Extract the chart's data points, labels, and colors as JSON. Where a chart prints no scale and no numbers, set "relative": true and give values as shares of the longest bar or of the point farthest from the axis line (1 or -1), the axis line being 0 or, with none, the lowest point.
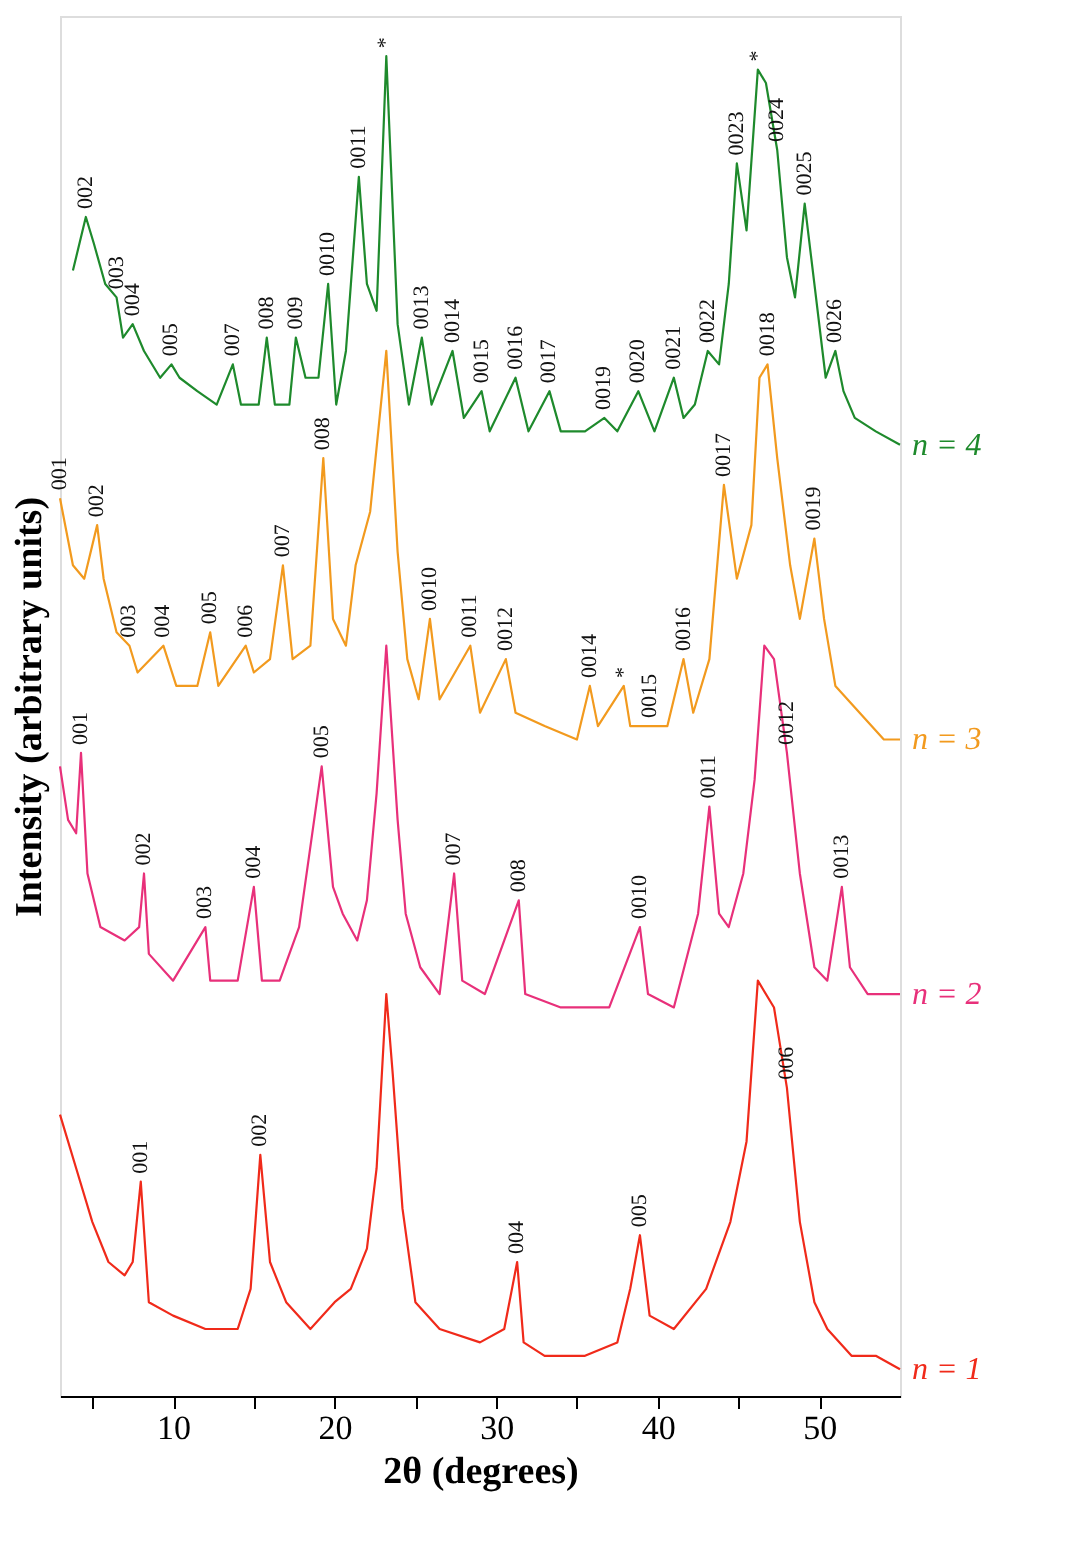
{
  "chart_data": {
    "type": "line",
    "relative": true,
    "xlabel": "2θ (degrees)",
    "ylabel": "Intensity (arbitrary units)",
    "xlim": [
      3,
      55
    ],
    "xticks": [
      {
        "value": 5,
        "label": null
      },
      10,
      {
        "value": 15,
        "label": null
      },
      20,
      {
        "value": 25,
        "label": null
      },
      30,
      {
        "value": 35,
        "label": null
      },
      40,
      {
        "value": 45,
        "label": null
      },
      50
    ],
    "grid": false,
    "marker": "none",
    "line_style": "solid",
    "series": [
      {
        "name": "n = 4",
        "color": "#1e8a2c",
        "x": [
          3.8,
          4.6,
          5.1,
          5.8,
          6.5,
          6.9,
          7.5,
          8.2,
          9.2,
          9.9,
          10.4,
          11.5,
          12.7,
          13.7,
          14.2,
          15.3,
          15.8,
          16.3,
          17.2,
          17.6,
          18.2,
          19.0,
          19.6,
          20.1,
          20.7,
          21.5,
          22.0,
          22.6,
          23.2,
          23.9,
          24.6,
          25.4,
          26.0,
          27.3,
          28.0,
          29.1,
          29.6,
          31.2,
          32.0,
          33.3,
          34.0,
          35.5,
          36.7,
          37.5,
          38.8,
          39.8,
          41.0,
          41.6,
          42.3,
          43.1,
          43.8,
          44.4,
          44.9,
          45.5,
          46.2,
          46.7,
          47.4,
          48.0,
          48.5,
          49.1,
          49.7,
          50.4,
          51.0,
          51.5,
          52.2,
          53.5,
          55.0
        ],
        "values": [
          0.84,
          0.88,
          0.86,
          0.83,
          0.82,
          0.79,
          0.8,
          0.78,
          0.76,
          0.77,
          0.76,
          0.75,
          0.74,
          0.77,
          0.74,
          0.74,
          0.79,
          0.74,
          0.74,
          0.79,
          0.76,
          0.76,
          0.83,
          0.74,
          0.78,
          0.91,
          0.83,
          0.81,
          1.0,
          0.8,
          0.74,
          0.79,
          0.74,
          0.78,
          0.73,
          0.75,
          0.72,
          0.76,
          0.72,
          0.75,
          0.72,
          0.72,
          0.73,
          0.72,
          0.75,
          0.72,
          0.76,
          0.73,
          0.74,
          0.78,
          0.77,
          0.83,
          0.92,
          0.87,
          0.99,
          0.98,
          0.93,
          0.85,
          0.82,
          0.89,
          0.83,
          0.76,
          0.78,
          0.75,
          0.73,
          0.72,
          0.71
        ]
      },
      {
        "name": "n = 3",
        "color": "#f29a1e",
        "x": [
          3.0,
          3.8,
          4.5,
          5.3,
          5.7,
          6.5,
          7.3,
          7.8,
          9.4,
          10.2,
          11.5,
          12.3,
          12.8,
          14.5,
          15.0,
          16.0,
          16.8,
          17.4,
          18.5,
          19.3,
          19.9,
          20.7,
          21.3,
          22.2,
          23.2,
          23.9,
          24.5,
          25.2,
          25.9,
          26.5,
          28.4,
          29.0,
          30.6,
          31.2,
          33.0,
          35.0,
          35.8,
          36.3,
          37.9,
          38.3,
          39.5,
          40.6,
          41.6,
          42.2,
          43.2,
          44.1,
          44.9,
          45.8,
          46.3,
          46.8,
          47.4,
          48.2,
          48.8,
          49.7,
          50.3,
          51.0,
          52.5,
          54.0,
          55.0
        ],
        "values": [
          0.67,
          0.62,
          0.61,
          0.65,
          0.61,
          0.57,
          0.56,
          0.54,
          0.56,
          0.53,
          0.53,
          0.57,
          0.53,
          0.56,
          0.54,
          0.55,
          0.62,
          0.55,
          0.56,
          0.7,
          0.58,
          0.56,
          0.62,
          0.66,
          0.78,
          0.63,
          0.55,
          0.52,
          0.58,
          0.52,
          0.56,
          0.51,
          0.55,
          0.51,
          0.5,
          0.49,
          0.53,
          0.5,
          0.53,
          0.5,
          0.5,
          0.5,
          0.55,
          0.51,
          0.55,
          0.68,
          0.61,
          0.65,
          0.76,
          0.77,
          0.7,
          0.62,
          0.58,
          0.64,
          0.58,
          0.53,
          0.51,
          0.49,
          0.49
        ]
      },
      {
        "name": "n = 2",
        "color": "#e8307a",
        "x": [
          3.0,
          3.5,
          4.0,
          4.3,
          4.7,
          5.5,
          7.0,
          7.9,
          8.2,
          8.5,
          10.0,
          12.0,
          12.3,
          14.0,
          15.0,
          15.5,
          16.6,
          17.8,
          19.2,
          19.9,
          20.5,
          21.4,
          22.0,
          22.6,
          23.2,
          23.9,
          24.4,
          25.3,
          26.5,
          27.4,
          27.9,
          29.3,
          31.4,
          31.8,
          34.0,
          37.0,
          38.9,
          39.4,
          41.0,
          42.5,
          43.2,
          43.8,
          44.4,
          45.3,
          46.0,
          46.6,
          47.2,
          48.0,
          48.8,
          49.7,
          50.5,
          51.4,
          51.9,
          53.0,
          55.0
        ],
        "values": [
          0.47,
          0.43,
          0.42,
          0.48,
          0.39,
          0.35,
          0.34,
          0.35,
          0.39,
          0.33,
          0.31,
          0.35,
          0.31,
          0.31,
          0.38,
          0.31,
          0.31,
          0.35,
          0.47,
          0.38,
          0.36,
          0.34,
          0.37,
          0.45,
          0.56,
          0.43,
          0.36,
          0.32,
          0.3,
          0.39,
          0.31,
          0.3,
          0.37,
          0.3,
          0.29,
          0.29,
          0.35,
          0.3,
          0.29,
          0.36,
          0.44,
          0.36,
          0.35,
          0.39,
          0.46,
          0.56,
          0.55,
          0.48,
          0.39,
          0.32,
          0.31,
          0.38,
          0.32,
          0.3,
          0.3
        ]
      },
      {
        "name": "n = 1",
        "color": "#f02a1a",
        "x": [
          3.0,
          4.0,
          5.0,
          6.0,
          7.0,
          7.5,
          8.0,
          8.5,
          10.0,
          12.0,
          14.0,
          14.8,
          15.4,
          16.0,
          17.0,
          18.5,
          20.0,
          21.0,
          22.0,
          22.6,
          23.2,
          23.6,
          24.2,
          25.0,
          26.5,
          29.0,
          30.5,
          31.3,
          31.7,
          33.0,
          35.5,
          37.5,
          38.3,
          38.9,
          39.5,
          41.0,
          43.0,
          44.5,
          45.5,
          46.2,
          47.2,
          48.0,
          48.8,
          49.7,
          50.5,
          52.0,
          53.5,
          55.0
        ],
        "values": [
          0.21,
          0.17,
          0.13,
          0.1,
          0.09,
          0.1,
          0.16,
          0.07,
          0.06,
          0.05,
          0.05,
          0.08,
          0.18,
          0.1,
          0.07,
          0.05,
          0.07,
          0.08,
          0.11,
          0.17,
          0.3,
          0.24,
          0.14,
          0.07,
          0.05,
          0.04,
          0.05,
          0.1,
          0.04,
          0.03,
          0.03,
          0.04,
          0.08,
          0.12,
          0.06,
          0.05,
          0.08,
          0.13,
          0.19,
          0.31,
          0.29,
          0.23,
          0.13,
          0.07,
          0.05,
          0.03,
          0.03,
          0.02
        ]
      }
    ],
    "annotations": [
      {
        "text": "002",
        "x": 4.6,
        "y": 0.88
      },
      {
        "text": "003",
        "x": 6.5,
        "y": 0.82
      },
      {
        "text": "004",
        "x": 7.5,
        "y": 0.8
      },
      {
        "text": "005",
        "x": 9.9,
        "y": 0.77
      },
      {
        "text": "007",
        "x": 13.7,
        "y": 0.77
      },
      {
        "text": "008",
        "x": 15.8,
        "y": 0.79
      },
      {
        "text": "009",
        "x": 17.6,
        "y": 0.79
      },
      {
        "text": "0010",
        "x": 19.6,
        "y": 0.83
      },
      {
        "text": "0011",
        "x": 21.5,
        "y": 0.91
      },
      {
        "text": "*",
        "x": 23.2,
        "y": 1.0
      },
      {
        "text": "0013",
        "x": 25.4,
        "y": 0.79
      },
      {
        "text": "0014",
        "x": 27.3,
        "y": 0.78
      },
      {
        "text": "0015",
        "x": 29.1,
        "y": 0.75
      },
      {
        "text": "0016",
        "x": 31.2,
        "y": 0.76
      },
      {
        "text": "0017",
        "x": 33.3,
        "y": 0.75
      },
      {
        "text": "0019",
        "x": 36.7,
        "y": 0.73
      },
      {
        "text": "0020",
        "x": 38.8,
        "y": 0.75
      },
      {
        "text": "0021",
        "x": 41.0,
        "y": 0.76
      },
      {
        "text": "0022",
        "x": 43.1,
        "y": 0.78
      },
      {
        "text": "0023",
        "x": 44.9,
        "y": 0.92
      },
      {
        "text": "*",
        "x": 46.2,
        "y": 0.99
      },
      {
        "text": "0024",
        "x": 47.4,
        "y": 0.93
      },
      {
        "text": "0025",
        "x": 49.1,
        "y": 0.89
      },
      {
        "text": "0026",
        "x": 51.0,
        "y": 0.78
      },
      {
        "text": "001",
        "x": 3.0,
        "y": 0.67
      },
      {
        "text": "002",
        "x": 5.3,
        "y": 0.65
      },
      {
        "text": "003",
        "x": 7.3,
        "y": 0.56
      },
      {
        "text": "004",
        "x": 9.4,
        "y": 0.56
      },
      {
        "text": "005",
        "x": 12.3,
        "y": 0.57
      },
      {
        "text": "006",
        "x": 14.5,
        "y": 0.56
      },
      {
        "text": "007",
        "x": 16.8,
        "y": 0.62
      },
      {
        "text": "008",
        "x": 19.3,
        "y": 0.7
      },
      {
        "text": "0010",
        "x": 25.9,
        "y": 0.58
      },
      {
        "text": "0011",
        "x": 28.4,
        "y": 0.56
      },
      {
        "text": "0012",
        "x": 30.6,
        "y": 0.55
      },
      {
        "text": "0014",
        "x": 35.8,
        "y": 0.53
      },
      {
        "text": "*",
        "x": 37.9,
        "y": 0.53
      },
      {
        "text": "0015",
        "x": 39.5,
        "y": 0.5
      },
      {
        "text": "0016",
        "x": 41.6,
        "y": 0.55
      },
      {
        "text": "0017",
        "x": 44.1,
        "y": 0.68
      },
      {
        "text": "0018",
        "x": 46.8,
        "y": 0.77
      },
      {
        "text": "0019",
        "x": 49.7,
        "y": 0.64
      },
      {
        "text": "001",
        "x": 4.3,
        "y": 0.48
      },
      {
        "text": "002",
        "x": 8.2,
        "y": 0.39
      },
      {
        "text": "003",
        "x": 12.0,
        "y": 0.35
      },
      {
        "text": "004",
        "x": 15.0,
        "y": 0.38
      },
      {
        "text": "005",
        "x": 19.2,
        "y": 0.47
      },
      {
        "text": "007",
        "x": 27.4,
        "y": 0.39
      },
      {
        "text": "008",
        "x": 31.4,
        "y": 0.37
      },
      {
        "text": "0010",
        "x": 38.9,
        "y": 0.35
      },
      {
        "text": "0011",
        "x": 43.2,
        "y": 0.44
      },
      {
        "text": "0012",
        "x": 48.0,
        "y": 0.48
      },
      {
        "text": "0013",
        "x": 51.4,
        "y": 0.38
      },
      {
        "text": "001",
        "x": 8.0,
        "y": 0.16
      },
      {
        "text": "002",
        "x": 15.4,
        "y": 0.18
      },
      {
        "text": "004",
        "x": 31.3,
        "y": 0.1
      },
      {
        "text": "005",
        "x": 38.9,
        "y": 0.12
      },
      {
        "text": "006",
        "x": 48.0,
        "y": 0.23
      }
    ]
  }
}
